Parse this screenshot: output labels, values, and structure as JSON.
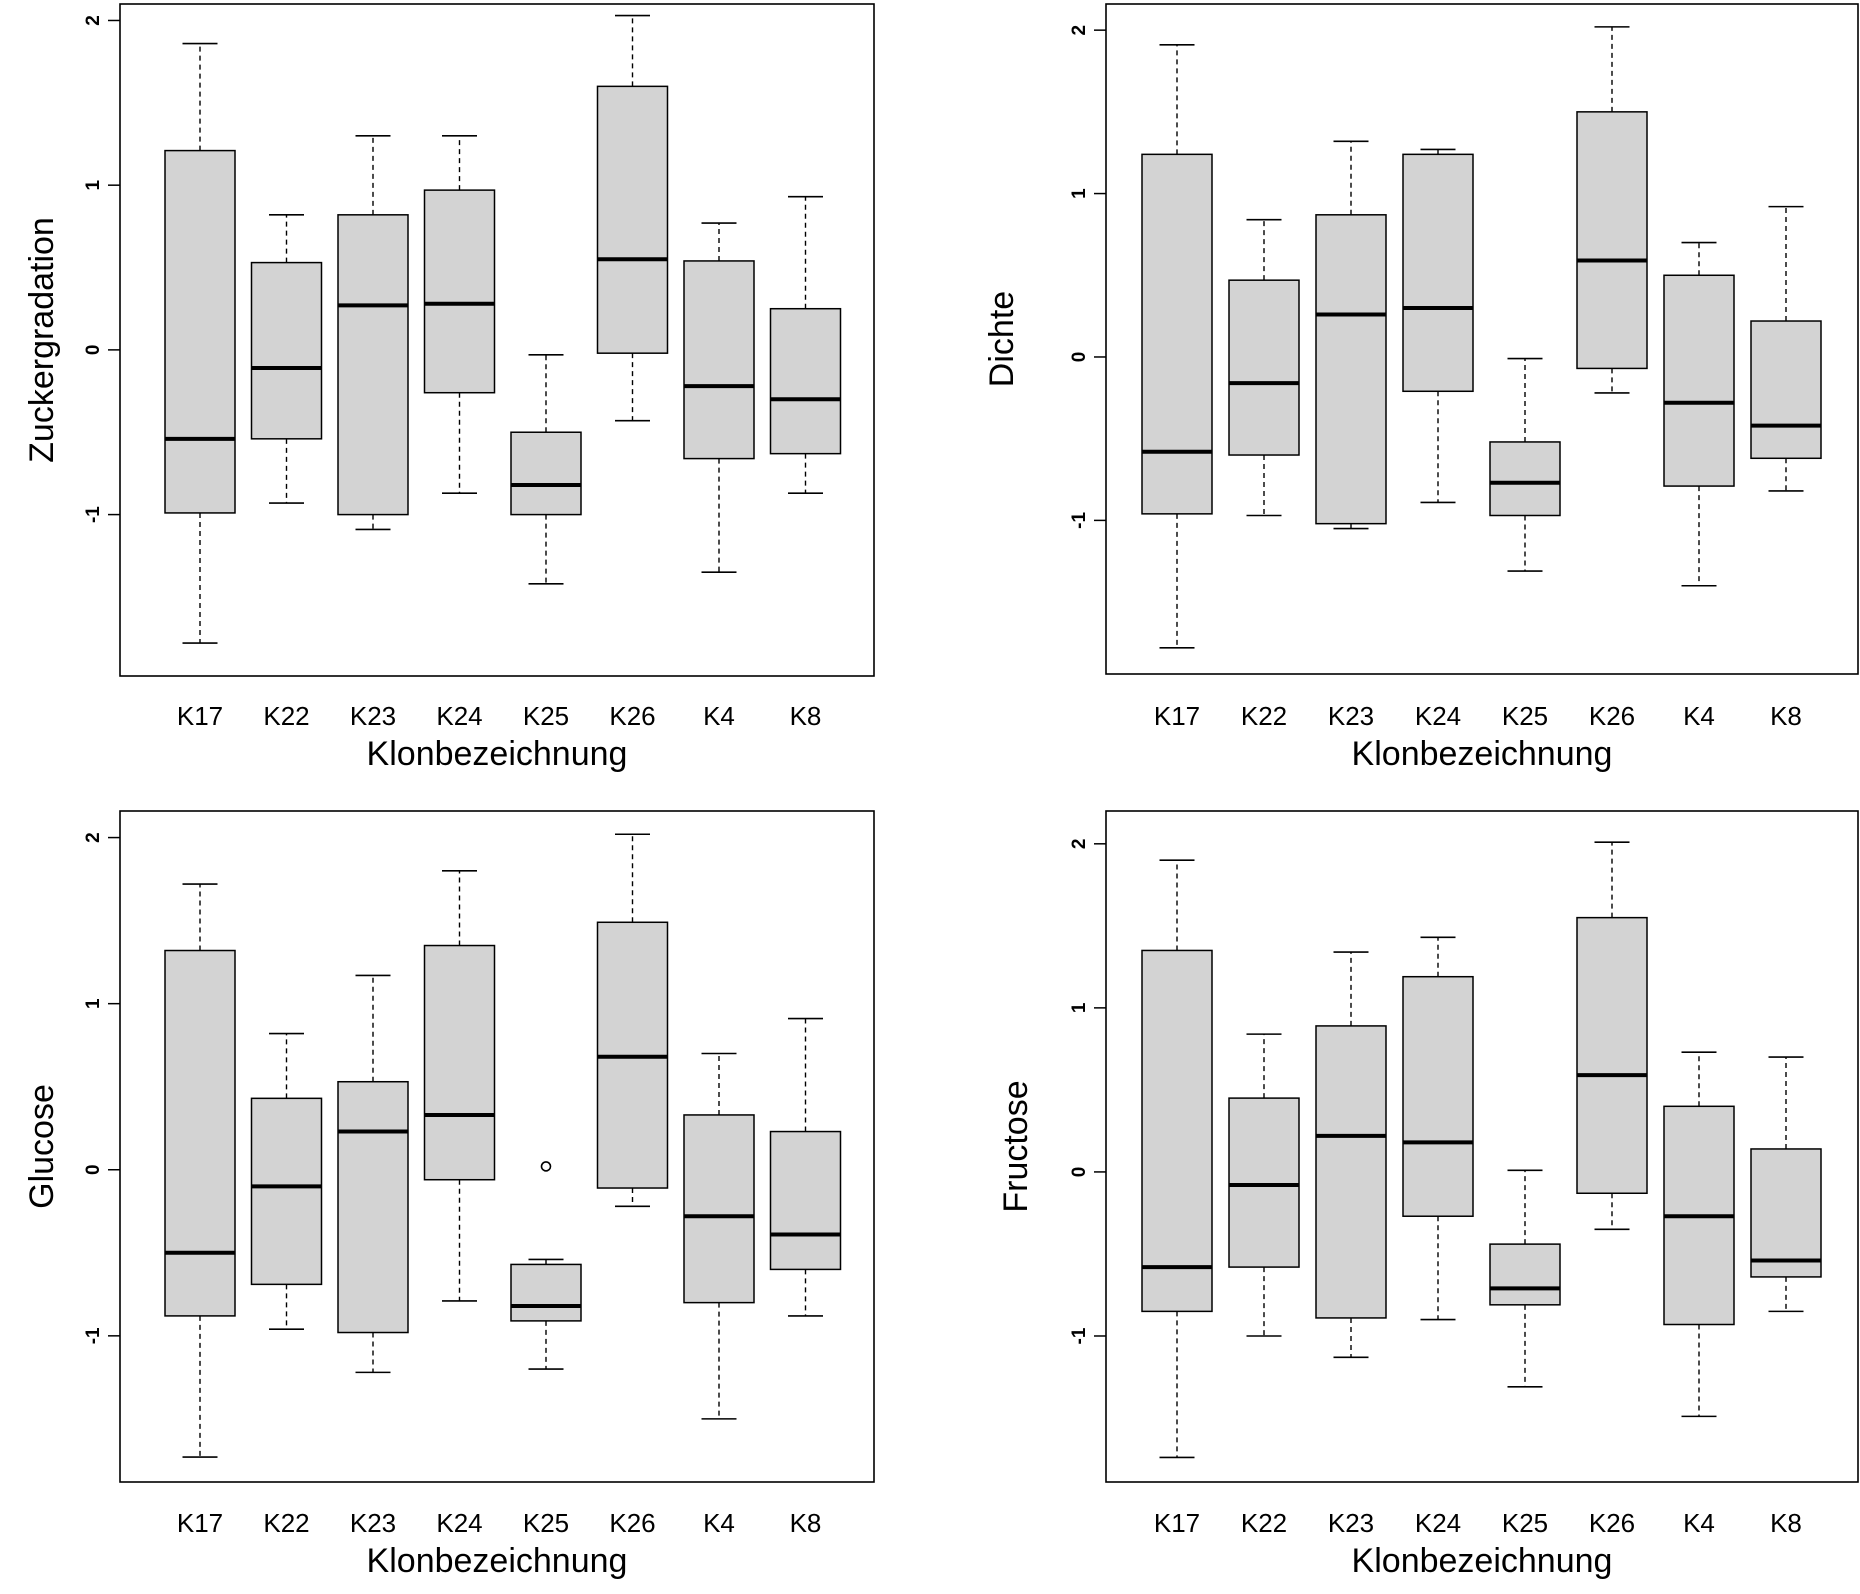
{
  "chart_data": [
    {
      "type": "boxplot",
      "ylabel": "Zuckergradation",
      "xlabel": "Klonbezeichnung",
      "categories": [
        "K17",
        "K22",
        "K23",
        "K24",
        "K25",
        "K26",
        "K4",
        "K8"
      ],
      "yticks": [
        -1,
        0,
        1,
        2
      ],
      "ytick_labels": [
        "-1",
        "0",
        "1",
        "2"
      ],
      "ylim": [
        -1.98,
        2.1
      ],
      "boxes": [
        {
          "min": -1.78,
          "q1": -0.99,
          "median": -0.54,
          "q3": 1.21,
          "max": 1.86
        },
        {
          "min": -0.93,
          "q1": -0.54,
          "median": -0.11,
          "q3": 0.53,
          "max": 0.82
        },
        {
          "min": -1.09,
          "q1": -1.0,
          "median": 0.27,
          "q3": 0.82,
          "max": 1.3
        },
        {
          "min": -0.87,
          "q1": -0.26,
          "median": 0.28,
          "q3": 0.97,
          "max": 1.3
        },
        {
          "min": -1.42,
          "q1": -1.0,
          "median": -0.82,
          "q3": -0.5,
          "max": -0.03
        },
        {
          "min": -0.43,
          "q1": -0.02,
          "median": 0.55,
          "q3": 1.6,
          "max": 2.03
        },
        {
          "min": -1.35,
          "q1": -0.66,
          "median": -0.22,
          "q3": 0.54,
          "max": 0.77
        },
        {
          "min": -0.87,
          "q1": -0.63,
          "median": -0.3,
          "q3": 0.25,
          "max": 0.93
        }
      ],
      "outliers": []
    },
    {
      "type": "boxplot",
      "ylabel": "Dichte",
      "xlabel": "Klonbezeichnung",
      "categories": [
        "K17",
        "K22",
        "K23",
        "K24",
        "K25",
        "K26",
        "K4",
        "K8"
      ],
      "yticks": [
        -1,
        0,
        1,
        2
      ],
      "ytick_labels": [
        "-1",
        "0",
        "1",
        "2"
      ],
      "ylim": [
        -1.94,
        2.16
      ],
      "boxes": [
        {
          "min": -1.78,
          "q1": -0.96,
          "median": -0.58,
          "q3": 1.24,
          "max": 1.91
        },
        {
          "min": -0.97,
          "q1": -0.6,
          "median": -0.16,
          "q3": 0.47,
          "max": 0.84
        },
        {
          "min": -1.05,
          "q1": -1.02,
          "median": 0.26,
          "q3": 0.87,
          "max": 1.32
        },
        {
          "min": -0.89,
          "q1": -0.21,
          "median": 0.3,
          "q3": 1.24,
          "max": 1.27
        },
        {
          "min": -1.31,
          "q1": -0.97,
          "median": -0.77,
          "q3": -0.52,
          "max": -0.01
        },
        {
          "min": -0.22,
          "q1": -0.07,
          "median": 0.59,
          "q3": 1.5,
          "max": 2.02
        },
        {
          "min": -1.4,
          "q1": -0.79,
          "median": -0.28,
          "q3": 0.5,
          "max": 0.7
        },
        {
          "min": -0.82,
          "q1": -0.62,
          "median": -0.42,
          "q3": 0.22,
          "max": 0.92
        }
      ],
      "outliers": []
    },
    {
      "type": "boxplot",
      "ylabel": "Glucose",
      "xlabel": "Klonbezeichnung",
      "categories": [
        "K17",
        "K22",
        "K23",
        "K24",
        "K25",
        "K26",
        "K4",
        "K8"
      ],
      "yticks": [
        -1,
        0,
        1,
        2
      ],
      "ytick_labels": [
        "-1",
        "0",
        "1",
        "2"
      ],
      "ylim": [
        -1.88,
        2.16
      ],
      "boxes": [
        {
          "min": -1.73,
          "q1": -0.88,
          "median": -0.5,
          "q3": 1.32,
          "max": 1.72
        },
        {
          "min": -0.96,
          "q1": -0.69,
          "median": -0.1,
          "q3": 0.43,
          "max": 0.82
        },
        {
          "min": -1.22,
          "q1": -0.98,
          "median": 0.23,
          "q3": 0.53,
          "max": 1.17
        },
        {
          "min": -0.79,
          "q1": -0.06,
          "median": 0.33,
          "q3": 1.35,
          "max": 1.8
        },
        {
          "min": -1.2,
          "q1": -0.91,
          "median": -0.82,
          "q3": -0.57,
          "max": -0.54
        },
        {
          "min": -0.22,
          "q1": -0.11,
          "median": 0.68,
          "q3": 1.49,
          "max": 2.02
        },
        {
          "min": -1.5,
          "q1": -0.8,
          "median": -0.28,
          "q3": 0.33,
          "max": 0.7
        },
        {
          "min": -0.88,
          "q1": -0.6,
          "median": -0.39,
          "q3": 0.23,
          "max": 0.91
        }
      ],
      "outliers": [
        {
          "category": "K25",
          "value": 0.02
        }
      ]
    },
    {
      "type": "boxplot",
      "ylabel": "Fructose",
      "xlabel": "Klonbezeichnung",
      "categories": [
        "K17",
        "K22",
        "K23",
        "K24",
        "K25",
        "K26",
        "K4",
        "K8"
      ],
      "yticks": [
        -1,
        0,
        1,
        2
      ],
      "ytick_labels": [
        "-1",
        "0",
        "1",
        "2"
      ],
      "ylim": [
        -1.89,
        2.2
      ],
      "boxes": [
        {
          "min": -1.74,
          "q1": -0.85,
          "median": -0.58,
          "q3": 1.35,
          "max": 1.9
        },
        {
          "min": -1.0,
          "q1": -0.58,
          "median": -0.08,
          "q3": 0.45,
          "max": 0.84
        },
        {
          "min": -1.13,
          "q1": -0.89,
          "median": 0.22,
          "q3": 0.89,
          "max": 1.34
        },
        {
          "min": -0.9,
          "q1": -0.27,
          "median": 0.18,
          "q3": 1.19,
          "max": 1.43
        },
        {
          "min": -1.31,
          "q1": -0.81,
          "median": -0.71,
          "q3": -0.44,
          "max": 0.01
        },
        {
          "min": -0.35,
          "q1": -0.13,
          "median": 0.59,
          "q3": 1.55,
          "max": 2.01
        },
        {
          "min": -1.49,
          "q1": -0.93,
          "median": -0.27,
          "q3": 0.4,
          "max": 0.73
        },
        {
          "min": -0.85,
          "q1": -0.64,
          "median": -0.54,
          "q3": 0.14,
          "max": 0.7
        }
      ],
      "outliers": []
    }
  ]
}
